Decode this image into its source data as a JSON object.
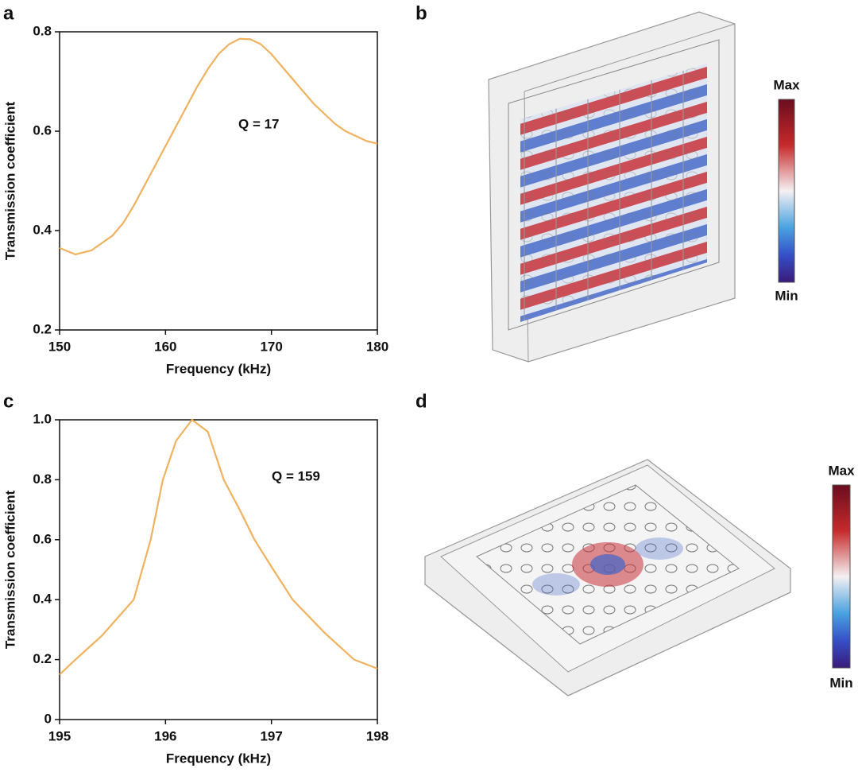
{
  "panel_labels": [
    "a",
    "b",
    "c",
    "d"
  ],
  "colorbars": [
    {
      "max_label": "Max",
      "min_label": "Min"
    },
    {
      "max_label": "Max",
      "min_label": "Min"
    }
  ],
  "chart_data": [
    {
      "type": "line",
      "xlabel": "Frequency (kHz)",
      "ylabel": "Transmission coefficient",
      "annotation": "Q = 17",
      "color": "#f0b25f",
      "x": [
        150,
        151.5,
        153,
        154,
        155,
        156,
        157,
        158,
        159,
        160,
        161,
        162,
        163,
        164,
        165,
        166,
        167,
        168,
        169,
        170,
        171,
        172,
        173,
        174,
        175,
        176,
        177,
        178,
        179,
        180
      ],
      "values": [
        0.365,
        0.352,
        0.36,
        0.375,
        0.39,
        0.415,
        0.45,
        0.49,
        0.53,
        0.57,
        0.61,
        0.65,
        0.69,
        0.725,
        0.755,
        0.775,
        0.786,
        0.785,
        0.775,
        0.755,
        0.73,
        0.705,
        0.68,
        0.655,
        0.635,
        0.615,
        0.6,
        0.59,
        0.58,
        0.575
      ],
      "xlim": [
        150,
        180
      ],
      "xticks": [
        150,
        160,
        170,
        180
      ],
      "ylim": [
        0.2,
        0.8
      ],
      "yticks": [
        0.2,
        0.4,
        0.6,
        0.8
      ]
    },
    {
      "type": "line",
      "xlabel": "Frequency (kHz)",
      "ylabel": "Transmission coefficient",
      "annotation": "Q = 159",
      "color": "#f0b25f",
      "x": [
        195,
        195.15,
        195.4,
        195.6,
        195.7,
        195.86,
        195.975,
        196.1,
        196.25,
        196.4,
        196.55,
        196.7,
        196.84,
        197,
        197.2,
        197.5,
        197.78,
        198
      ],
      "values": [
        0.15,
        0.2,
        0.28,
        0.36,
        0.4,
        0.6,
        0.8,
        0.93,
        1.0,
        0.96,
        0.8,
        0.7,
        0.6,
        0.51,
        0.4,
        0.29,
        0.2,
        0.17
      ],
      "xlim": [
        195,
        198
      ],
      "xticks": [
        195,
        196,
        197,
        198
      ],
      "ylim": [
        0,
        1
      ],
      "yticks": [
        0,
        0.2,
        0.4,
        0.6,
        0.8,
        {
          "value": 1,
          "label": "1.0"
        }
      ]
    }
  ]
}
